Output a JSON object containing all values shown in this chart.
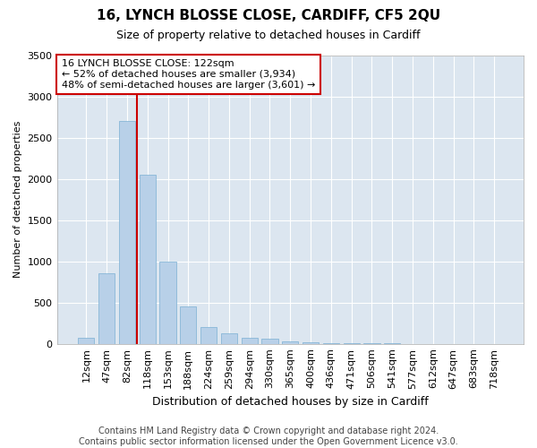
{
  "title1": "16, LYNCH BLOSSE CLOSE, CARDIFF, CF5 2QU",
  "title2": "Size of property relative to detached houses in Cardiff",
  "xlabel": "Distribution of detached houses by size in Cardiff",
  "ylabel": "Number of detached properties",
  "categories": [
    "12sqm",
    "47sqm",
    "82sqm",
    "118sqm",
    "153sqm",
    "188sqm",
    "224sqm",
    "259sqm",
    "294sqm",
    "330sqm",
    "365sqm",
    "400sqm",
    "436sqm",
    "471sqm",
    "506sqm",
    "541sqm",
    "577sqm",
    "612sqm",
    "647sqm",
    "683sqm",
    "718sqm"
  ],
  "values": [
    75,
    850,
    2700,
    2050,
    1000,
    450,
    200,
    130,
    75,
    60,
    30,
    20,
    10,
    5,
    3,
    2,
    1,
    1,
    1,
    1,
    1
  ],
  "bar_color": "#b8d0e8",
  "bar_edge_color": "#7aafd4",
  "vline_x_index": 2.5,
  "vline_color": "#cc0000",
  "annotation_text": "16 LYNCH BLOSSE CLOSE: 122sqm\n← 52% of detached houses are smaller (3,934)\n48% of semi-detached houses are larger (3,601) →",
  "annotation_box_color": "#ffffff",
  "annotation_box_edge": "#cc0000",
  "ylim": [
    0,
    3500
  ],
  "yticks": [
    0,
    500,
    1000,
    1500,
    2000,
    2500,
    3000,
    3500
  ],
  "plot_bg_color": "#dce6f0",
  "fig_bg_color": "#ffffff",
  "grid_color": "#ffffff",
  "footer": "Contains HM Land Registry data © Crown copyright and database right 2024.\nContains public sector information licensed under the Open Government Licence v3.0.",
  "title1_fontsize": 11,
  "title2_fontsize": 9,
  "xlabel_fontsize": 9,
  "ylabel_fontsize": 8,
  "tick_fontsize": 8,
  "annotation_fontsize": 8,
  "footer_fontsize": 7
}
